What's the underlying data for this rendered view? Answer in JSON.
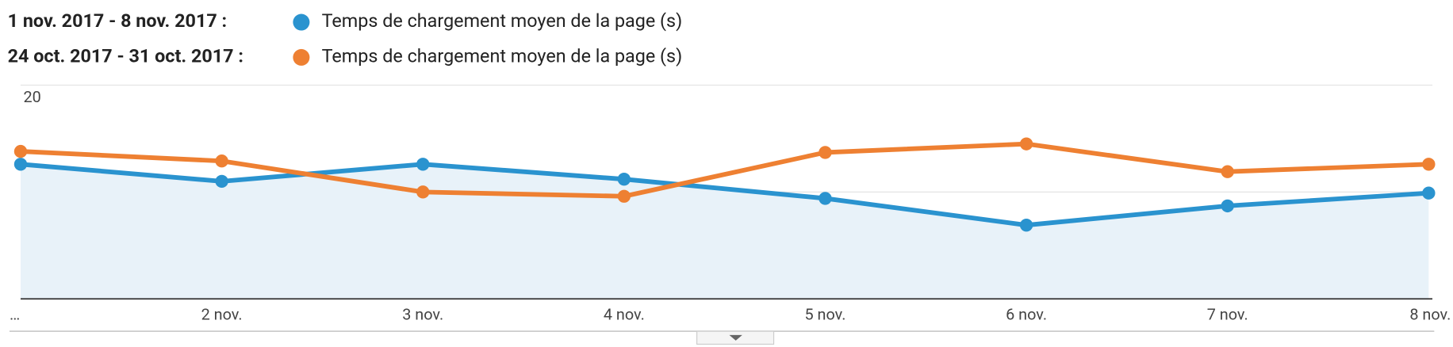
{
  "chart_data": {
    "type": "line",
    "categories": [
      "…",
      "2 nov.",
      "3 nov.",
      "4 nov.",
      "5 nov.",
      "6 nov.",
      "7 nov.",
      "8 nov."
    ],
    "series": [
      {
        "period": "1 nov. 2017 - 8 nov. 2017 :",
        "name": "Temps de chargement moyen de la page (s)",
        "color": "#2a93cf",
        "area": true,
        "values": [
          12.6,
          11.0,
          12.6,
          11.2,
          9.4,
          6.9,
          8.7,
          9.9
        ]
      },
      {
        "period": "24 oct. 2017 - 31 oct. 2017 :",
        "name": "Temps de chargement moyen de la page (s)",
        "color": "#ee8032",
        "area": false,
        "values": [
          13.8,
          12.9,
          10.0,
          9.6,
          13.7,
          14.5,
          11.9,
          12.6
        ]
      }
    ],
    "ylim": [
      0,
      20
    ],
    "yticks": [
      10,
      20
    ],
    "grid": true
  }
}
